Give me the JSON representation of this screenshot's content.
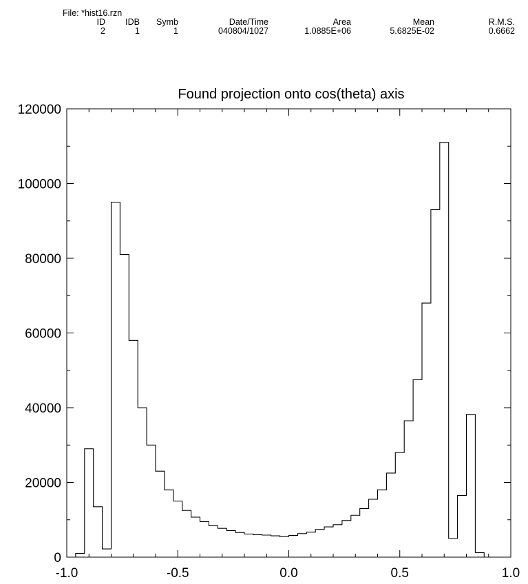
{
  "header": {
    "file_label": "File: *hist16.rzn",
    "columns": [
      {
        "label": "ID",
        "value": "2"
      },
      {
        "label": "IDB",
        "value": "1"
      },
      {
        "label": "Symb",
        "value": "1"
      },
      {
        "label": "Date/Time",
        "value": "040804/1027"
      },
      {
        "label": "Area",
        "value": "1.0885E+06"
      },
      {
        "label": "Mean",
        "value": "5.6825E-02"
      },
      {
        "label": "R.M.S.",
        "value": "0.6662"
      }
    ]
  },
  "chart_data": {
    "type": "bar",
    "style": "step-histogram",
    "title": "Found projection onto cos(theta) axis",
    "xlabel": "",
    "ylabel": "",
    "xlim": [
      -1.0,
      1.0
    ],
    "ylim": [
      0,
      120000
    ],
    "bin_width": 0.04,
    "x_ticks": [
      "-1.0",
      "-0.5",
      "0.0",
      "0.5",
      "1.0"
    ],
    "y_ticks": [
      "0",
      "20000",
      "40000",
      "60000",
      "80000",
      "100000",
      "120000"
    ],
    "bin_edges_start": -0.96,
    "values": [
      1000,
      29000,
      13500,
      2200,
      95000,
      81000,
      58000,
      40000,
      30000,
      23000,
      18000,
      15000,
      12500,
      10700,
      9500,
      8400,
      7700,
      7100,
      6600,
      6200,
      6000,
      5900,
      5700,
      5500,
      5800,
      6300,
      6700,
      7400,
      8100,
      8700,
      9800,
      11200,
      13000,
      15500,
      18000,
      22500,
      28000,
      36500,
      47500,
      68000,
      93000,
      111000,
      5000,
      16500,
      38200,
      1200
    ],
    "grid": false,
    "legend": "none"
  }
}
